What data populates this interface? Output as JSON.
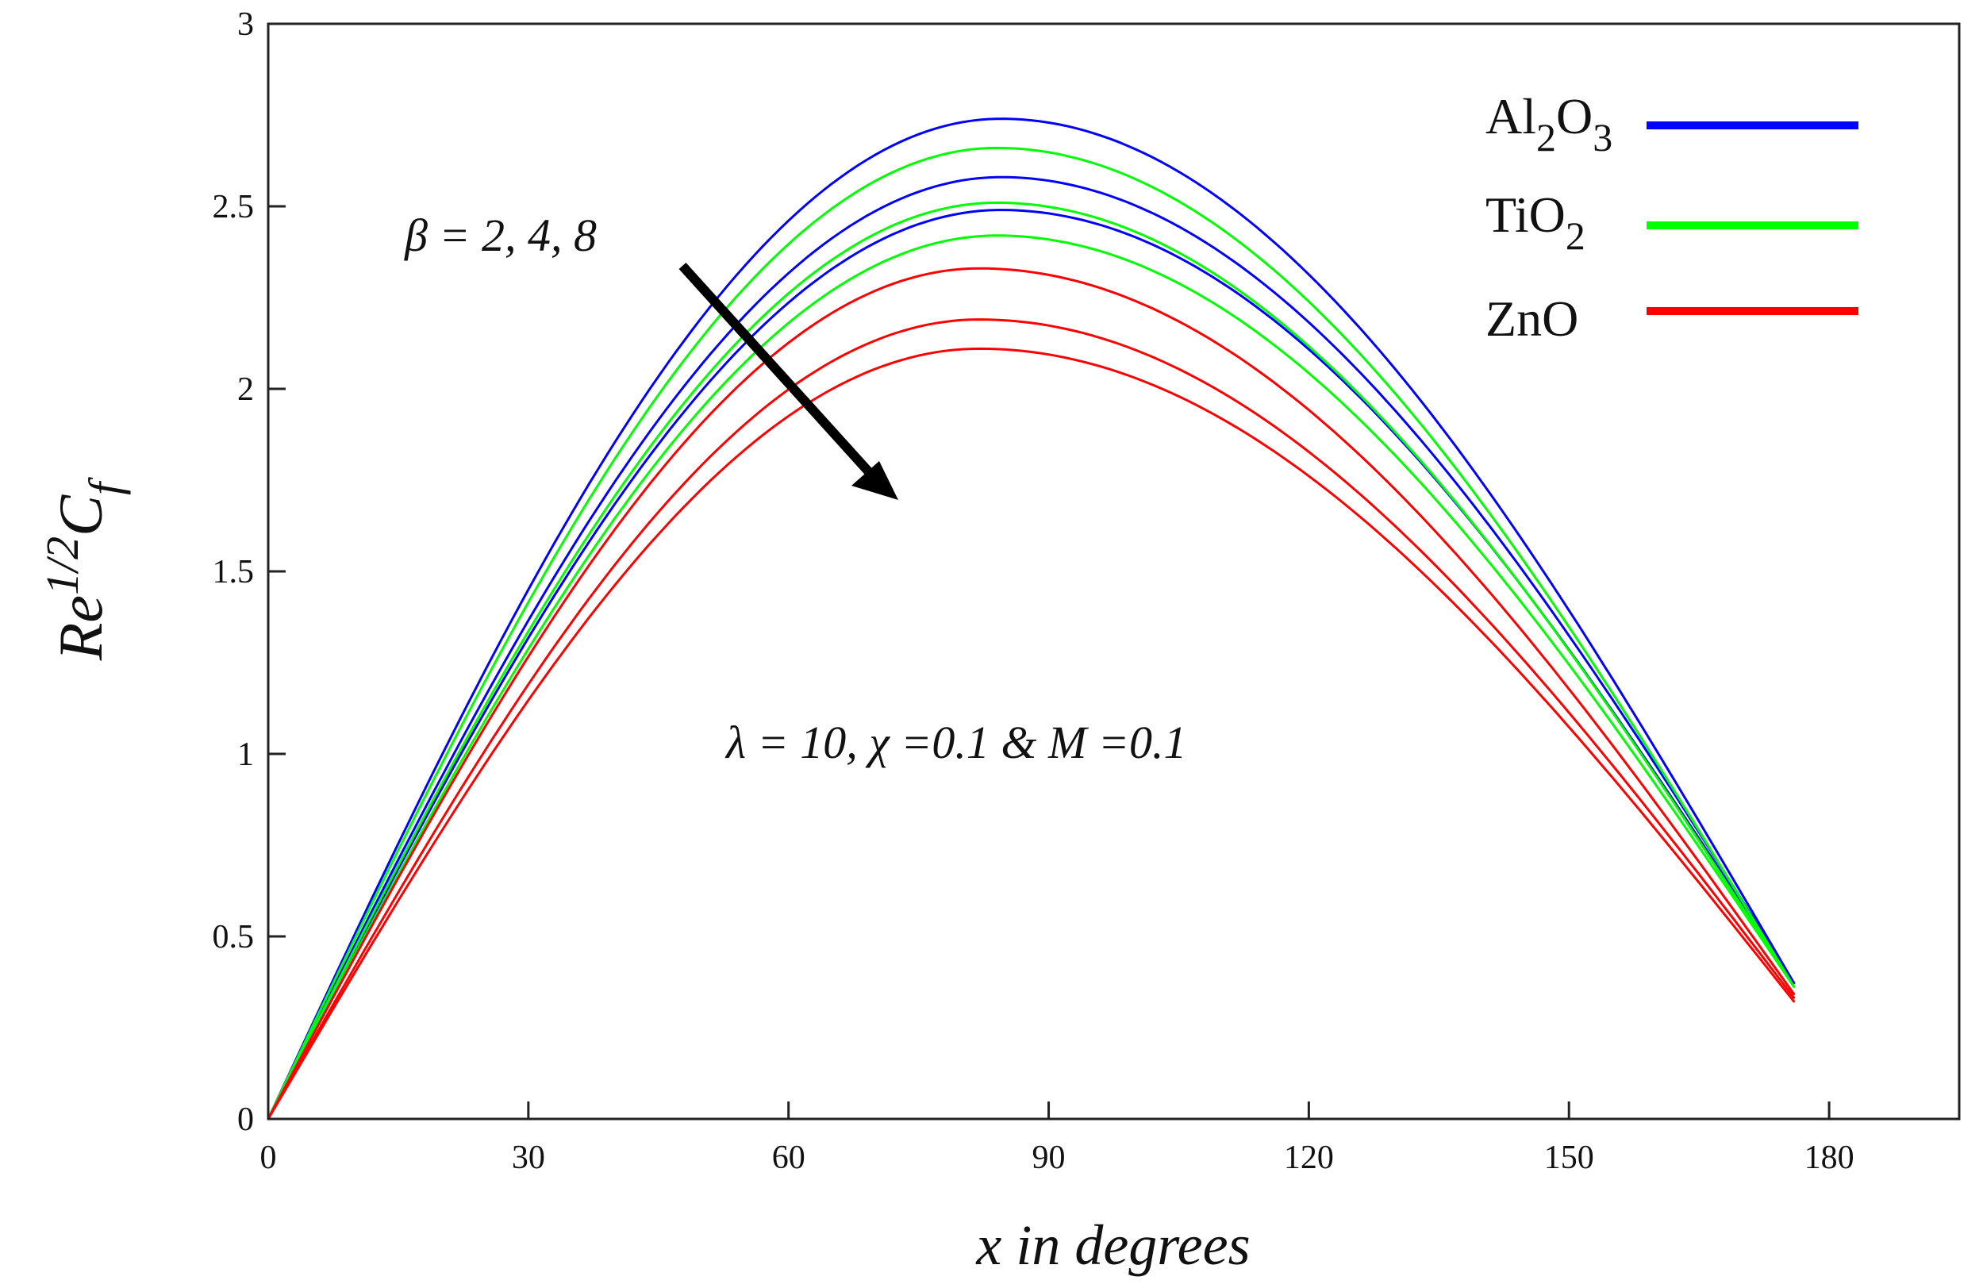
{
  "chart_data": {
    "type": "line",
    "title": "",
    "xlabel": "x in degrees",
    "ylabel": {
      "base": "Re",
      "sup": "1/2",
      "main": "C",
      "sub": "f"
    },
    "xlim": [
      0,
      195
    ],
    "ylim": [
      0,
      3
    ],
    "xticks": [
      0,
      30,
      60,
      90,
      120,
      150,
      180
    ],
    "yticks": [
      0,
      0.5,
      1,
      1.5,
      2,
      2.5,
      3
    ],
    "xtick_labels": [
      "0",
      "30",
      "60",
      "90",
      "120",
      "150",
      "180"
    ],
    "ytick_labels": [
      "0",
      "0.5",
      "1",
      "1.5",
      "2",
      "2.5",
      "3"
    ],
    "grid": false,
    "x_end": 176,
    "legend": {
      "position": "top-right",
      "entries": [
        {
          "name": "Al2O3",
          "parts": [
            "Al",
            "2",
            "O",
            "3"
          ],
          "color": "#0000ff"
        },
        {
          "name": "TiO2",
          "parts": [
            "TiO",
            "2"
          ],
          "color": "#00ff00"
        },
        {
          "name": "ZnO",
          "parts": [
            "ZnO"
          ],
          "color": "#ff0000"
        }
      ]
    },
    "series": [
      {
        "name": "Al2O3",
        "beta": 2,
        "color": "#0000ff",
        "peak_x": 84.5,
        "peak_y": 2.74,
        "end_y": 0.37
      },
      {
        "name": "Al2O3",
        "beta": 4,
        "color": "#0000ff",
        "peak_x": 84.5,
        "peak_y": 2.58,
        "end_y": 0.37
      },
      {
        "name": "Al2O3",
        "beta": 8,
        "color": "#0000ff",
        "peak_x": 84.5,
        "peak_y": 2.49,
        "end_y": 0.37
      },
      {
        "name": "TiO2",
        "beta": 2,
        "color": "#00ff00",
        "peak_x": 84,
        "peak_y": 2.66,
        "end_y": 0.36
      },
      {
        "name": "TiO2",
        "beta": 4,
        "color": "#00ff00",
        "peak_x": 84,
        "peak_y": 2.51,
        "end_y": 0.36
      },
      {
        "name": "TiO2",
        "beta": 8,
        "color": "#00ff00",
        "peak_x": 84,
        "peak_y": 2.42,
        "end_y": 0.36
      },
      {
        "name": "ZnO",
        "beta": 2,
        "color": "#ff0000",
        "peak_x": 82,
        "peak_y": 2.33,
        "end_y": 0.34
      },
      {
        "name": "ZnO",
        "beta": 4,
        "color": "#ff0000",
        "peak_x": 82,
        "peak_y": 2.19,
        "end_y": 0.33
      },
      {
        "name": "ZnO",
        "beta": 8,
        "color": "#ff0000",
        "peak_x": 82,
        "peak_y": 2.11,
        "end_y": 0.32
      }
    ],
    "annotations": {
      "beta_label": "β = 2, 4, 8",
      "params_label": "λ = 10, χ =0.1 & M =0.1"
    }
  }
}
